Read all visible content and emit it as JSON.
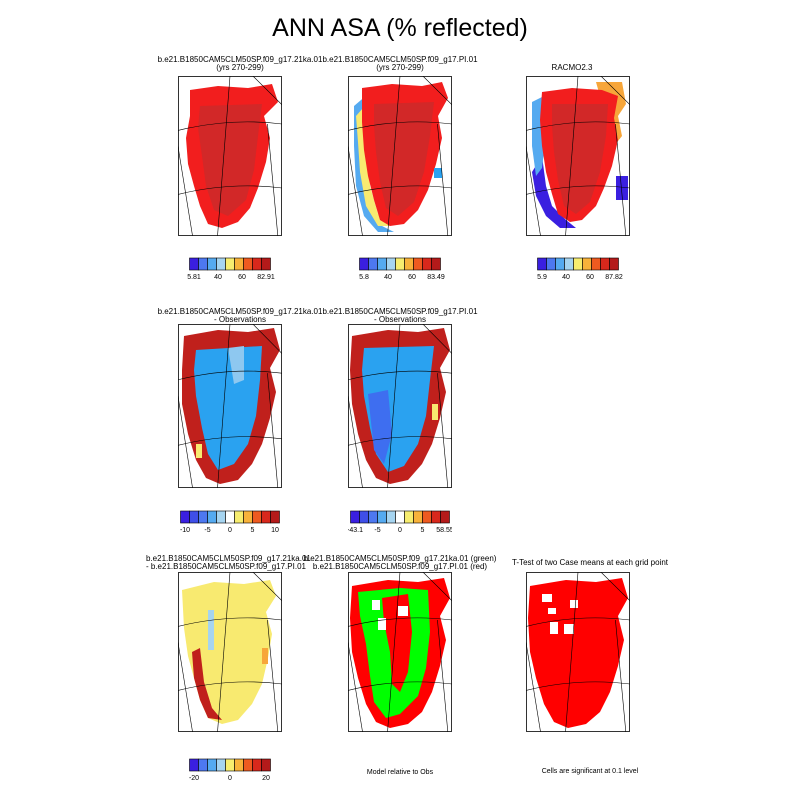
{
  "title": "ANN ASA (% reflected)",
  "panels": [
    {
      "title1": "b.e21.B1850CAM5CLM50SP.f09_g17.21ka.01",
      "title2": "(yrs 270-299)"
    },
    {
      "title1": "b.e21.B1850CAM5CLM50SP.f09_g17.PI.01",
      "title2": "(yrs 270-299)"
    },
    {
      "title1": "RACMO2.3",
      "title2": ""
    },
    {
      "title1": "b.e21.B1850CAM5CLM50SP.f09_g17.21ka.01",
      "title2": "- Observations"
    },
    {
      "title1": "b.e21.B1850CAM5CLM50SP.f09_g17.PI.01",
      "title2": "- Observations"
    },
    {
      "title1": "b.e21.B1850CAM5CLM50SP.f09_g17.21ka.01",
      "title2": "- b.e21.B1850CAM5CLM50SP.f09_g17.PI.01"
    },
    {
      "title1": "b.e21.B1850CAM5CLM50SP.f09_g17.21ka.01 (green)",
      "title2": "b.e21.B1850CAM5CLM50SP.f09_g17.PI.01 (red)"
    },
    {
      "title1": "T-Test of two Case means at each grid point",
      "title2": ""
    }
  ],
  "notes": {
    "model_relative": "Model relative to Obs",
    "significance": "Cells are significant at 0.1 level"
  },
  "colorbars": [
    {
      "colors": [
        "#3a1fe0",
        "#4d78f0",
        "#55aaf0",
        "#a6d4f0",
        "#f7ed6f",
        "#f8b23a",
        "#ee5a20",
        "#d8281c",
        "#b41a1a"
      ],
      "labels": [
        "5.81",
        "40",
        "60",
        "82.91"
      ]
    },
    {
      "colors": [
        "#3a1fe0",
        "#4d78f0",
        "#55aaf0",
        "#a6d4f0",
        "#f7ed6f",
        "#f8b23a",
        "#ee5a20",
        "#d8281c",
        "#b41a1a"
      ],
      "labels": [
        "5.8",
        "40",
        "60",
        "83.49"
      ]
    },
    {
      "colors": [
        "#3a1fe0",
        "#4d78f0",
        "#55aaf0",
        "#a6d4f0",
        "#f7ed6f",
        "#f8b23a",
        "#ee5a20",
        "#d8281c",
        "#b41a1a"
      ],
      "labels": [
        "5.9",
        "40",
        "60",
        "87.82"
      ]
    },
    {
      "colors": [
        "#3a1fe0",
        "#3f4fe8",
        "#4d78f0",
        "#55aaf0",
        "#a6d4f0",
        "#ffffff",
        "#f7ed6f",
        "#f8b23a",
        "#ee5a20",
        "#d8281c",
        "#b41a1a"
      ],
      "labels": [
        "-10",
        "-5",
        "0",
        "5",
        "10"
      ]
    },
    {
      "colors": [
        "#3a1fe0",
        "#3f4fe8",
        "#4d78f0",
        "#55aaf0",
        "#a6d4f0",
        "#ffffff",
        "#f7ed6f",
        "#f8b23a",
        "#ee5a20",
        "#d8281c",
        "#b41a1a"
      ],
      "labels": [
        "-43.1",
        "-5",
        "0",
        "5",
        "58.55"
      ]
    },
    {
      "colors": [
        "#3a1fe0",
        "#4d78f0",
        "#55aaf0",
        "#a6d4f0",
        "#f7ed6f",
        "#f8b23a",
        "#ee5a20",
        "#d8281c",
        "#b41a1a"
      ],
      "labels": [
        "-20",
        "0",
        "20"
      ]
    }
  ],
  "map_colors": {
    "dark_red": "#c0201c",
    "red": "#f21e1e",
    "deep_red": "#d22828",
    "mid_blue": "#2aa2f0",
    "light_blue": "#8ec8f0",
    "blue": "#3e6ef0",
    "violet": "#3a1fe0",
    "yellow": "#f8ea70",
    "orange": "#f7a63a",
    "green": "#00ff00",
    "bright_red": "#ff0000",
    "white": "#ffffff"
  },
  "chart_data": {
    "type": "heatmap",
    "title": "ANN ASA (% reflected)",
    "region": "Greenland",
    "panels": [
      {
        "name": "b.e21.B1850CAM5CLM50SP.f09_g17.21ka.01 (yrs 270-299)",
        "min": 5.81,
        "max": 82.91
      },
      {
        "name": "b.e21.B1850CAM5CLM50SP.f09_g17.PI.01 (yrs 270-299)",
        "min": 5.8,
        "max": 83.49
      },
      {
        "name": "RACMO2.3",
        "min": 5.9,
        "max": 87.82
      },
      {
        "name": "b.e21.B1850CAM5CLM50SP.f09_g17.21ka.01 - Observations",
        "ticks": [
          -10,
          -5,
          0,
          5,
          10
        ]
      },
      {
        "name": "b.e21.B1850CAM5CLM50SP.f09_g17.PI.01 - Observations",
        "min": -43.1,
        "max": 58.55
      },
      {
        "name": "b.e21.B1850CAM5CLM50SP.f09_g17.21ka.01 - b.e21.B1850CAM5CLM50SP.f09_g17.PI.01",
        "ticks": [
          -20,
          0,
          20
        ]
      },
      {
        "name": "Model relative to Obs (green: 21ka.01, red: PI.01)"
      },
      {
        "name": "T-Test of two Case means at each grid point"
      }
    ]
  }
}
